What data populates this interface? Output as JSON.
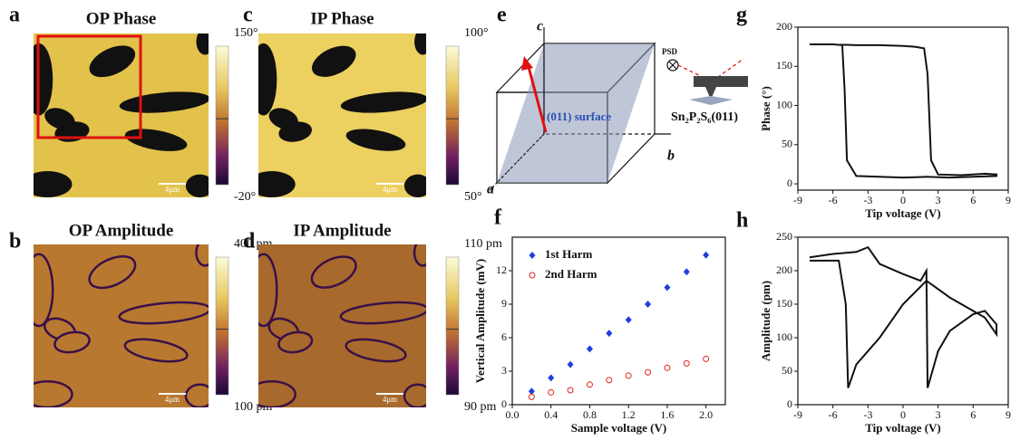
{
  "images": [
    {
      "letter": "a",
      "title": "OP Phase",
      "colorbar_top": "150°",
      "colorbar_bottom": "-20°",
      "scalebar": "4μm"
    },
    {
      "letter": "c",
      "title": "IP Phase",
      "colorbar_top": "100°",
      "colorbar_bottom": "50°",
      "scalebar": "4μm"
    },
    {
      "letter": "b",
      "title": "OP Amplitude",
      "colorbar_top": "400 pm",
      "colorbar_bottom": "100 pm",
      "scalebar": "4μm"
    },
    {
      "letter": "d",
      "title": "IP Amplitude",
      "colorbar_top": "110 pm",
      "colorbar_bottom": "90 pm",
      "scalebar": "4μm"
    }
  ],
  "diagram": {
    "letter": "e",
    "axis_c": "c",
    "axis_b": "b",
    "axis_a": "a",
    "surface": "(011) surface",
    "detector": "PSD",
    "sample": "Sn₂P₂S₆(011)"
  },
  "chart_data": [
    {
      "type": "scatter",
      "label": "f",
      "xlabel": "Sample voltage (V)",
      "ylabel": "Vertical Amplitude (mV)",
      "x": [
        0.2,
        0.4,
        0.6,
        0.8,
        1.0,
        1.2,
        1.4,
        1.6,
        1.8,
        2.0
      ],
      "series": [
        {
          "name": "1st Harm",
          "color": "#1f3fe0",
          "marker": "diamond",
          "values": [
            1.2,
            2.4,
            3.6,
            5.0,
            6.4,
            7.6,
            9.0,
            10.5,
            11.9,
            13.4
          ]
        },
        {
          "name": "2nd Harm",
          "color": "#e02020",
          "marker": "open-circle",
          "values": [
            0.7,
            1.1,
            1.3,
            1.8,
            2.2,
            2.6,
            2.9,
            3.3,
            3.7,
            4.1
          ]
        }
      ],
      "xlim": [
        0,
        2.2
      ],
      "xticks": [
        {
          "value": 0,
          "label": "0.0"
        },
        0.4,
        0.8,
        1.2,
        1.6,
        {
          "value": 2,
          "label": "2.0"
        }
      ],
      "ylim": [
        0,
        15
      ],
      "yticks": [
        0,
        3,
        6,
        9,
        12
      ],
      "legend": "upper left"
    },
    {
      "type": "line",
      "label": "g",
      "xlabel": "Tip voltage (V)",
      "ylabel": "Phase (°)",
      "x": [
        -8,
        -6,
        -4,
        -2,
        0,
        1,
        1.8,
        2.1,
        2.4,
        3,
        5,
        7,
        8,
        8,
        6,
        4,
        2,
        0,
        -2,
        -4,
        -4.8,
        -5,
        -5.2,
        -6,
        -8
      ],
      "series": [
        {
          "name": null,
          "color": "#111111",
          "values": [
            178,
            178,
            177,
            177,
            176,
            175,
            173,
            140,
            30,
            12,
            11,
            13,
            12,
            10,
            9,
            8,
            9,
            8,
            9,
            10,
            30,
            120,
            177,
            178,
            178
          ]
        }
      ],
      "xlim": [
        -9,
        9
      ],
      "xticks": [
        -9,
        -6,
        -3,
        0,
        3,
        6,
        9
      ],
      "ylim": [
        -8,
        200
      ],
      "yticks": [
        0,
        50,
        100,
        150,
        200
      ]
    },
    {
      "type": "line",
      "label": "h",
      "xlabel": "Tip voltage (V)",
      "ylabel": "Amplitude (pm)",
      "x": [
        -8,
        -6,
        -4,
        -3,
        -2,
        0,
        1.5,
        2,
        2.1,
        3,
        4,
        6,
        7,
        8,
        8,
        7,
        6,
        4,
        2,
        0,
        -2,
        -4,
        -4.7,
        -4.9,
        -5.5,
        -8
      ],
      "series": [
        {
          "name": null,
          "color": "#111111",
          "values": [
            220,
            225,
            228,
            235,
            210,
            195,
            185,
            200,
            25,
            80,
            110,
            135,
            140,
            120,
            105,
            130,
            140,
            160,
            185,
            150,
            100,
            60,
            25,
            150,
            215,
            215
          ]
        }
      ],
      "xlim": [
        -9,
        9
      ],
      "xticks": [
        -9,
        -6,
        -3,
        0,
        3,
        6,
        9
      ],
      "ylim": [
        0,
        250
      ],
      "yticks": [
        0,
        50,
        100,
        150,
        200,
        250
      ]
    }
  ]
}
